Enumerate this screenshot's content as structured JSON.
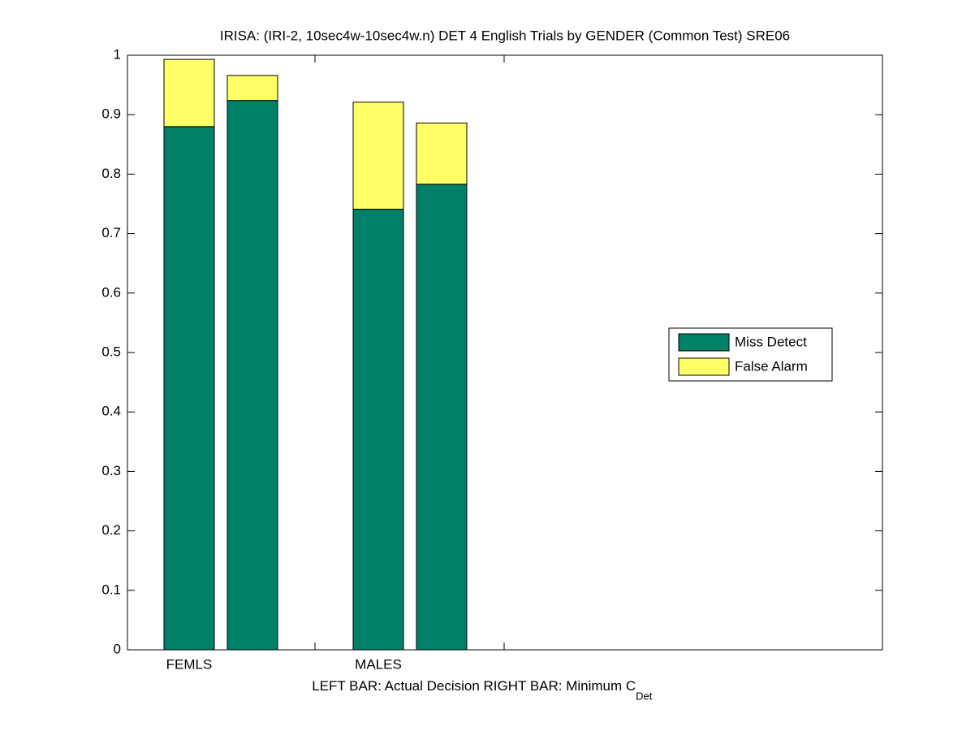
{
  "chart_data": {
    "type": "stacked_bar",
    "title": "IRISA: (IRI-2, 10sec4w-10sec4w.n) DET 4 English Trials by GENDER (Common Test) SRE06",
    "xlabel": "LEFT BAR: Actual Decision     RIGHT BAR: Minimum C",
    "xlabel_subscript": "Det",
    "categories": [
      "FEMLS",
      null,
      "MALES",
      null
    ],
    "series": [
      {
        "name": "Miss Detect",
        "color": "#008066",
        "values": [
          0.88,
          0.924,
          0.741,
          0.783
        ]
      },
      {
        "name": "False Alarm",
        "color": "#ffff66",
        "values": [
          0.113,
          0.042,
          0.18,
          0.103
        ]
      }
    ],
    "ylim": [
      0,
      1
    ],
    "yticks": [
      0,
      0.1,
      0.2,
      0.3,
      0.4,
      0.5,
      0.6,
      0.7,
      0.8,
      0.9,
      1
    ],
    "legend": "right"
  }
}
